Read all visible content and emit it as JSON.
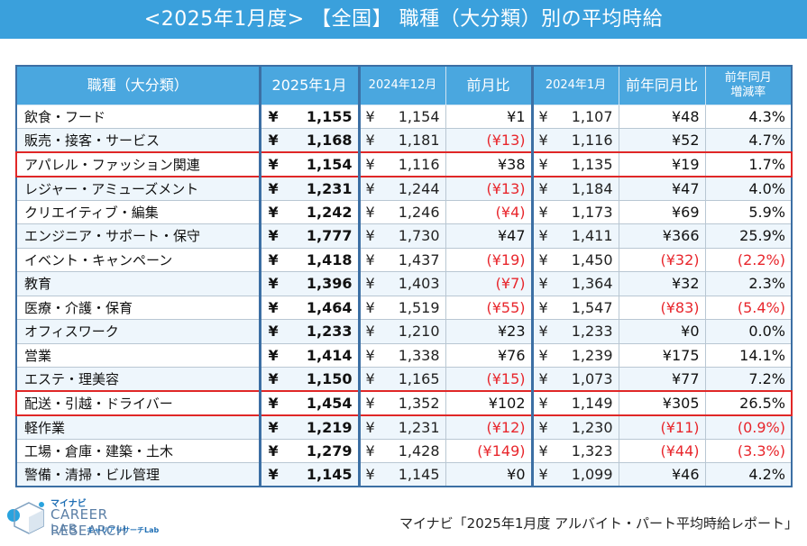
{
  "title": "<2025年1月度> 【全国】 職種（大分類）別の平均時給",
  "headers": {
    "category": "職種（大分類）",
    "current": "2025年1月",
    "prev_month": "2024年12月",
    "mom": "前月比",
    "prev_year": "2024年1月",
    "yoy": "前年同月比",
    "yoy_rate": "前年同月\n増減率"
  },
  "rows": [
    {
      "name": "飲食・フード",
      "current": "1,155",
      "prev_month": "1,154",
      "mom": "¥1",
      "prev_year": "1,107",
      "yoy": "¥48",
      "yoy_rate": "4.3%",
      "mom_neg": false,
      "yoy_neg": false,
      "rate_neg": false,
      "highlight": false
    },
    {
      "name": "販売・接客・サービス",
      "current": "1,168",
      "prev_month": "1,181",
      "mom": "(¥13)",
      "prev_year": "1,116",
      "yoy": "¥52",
      "yoy_rate": "4.7%",
      "mom_neg": true,
      "yoy_neg": false,
      "rate_neg": false,
      "highlight": false
    },
    {
      "name": "アパレル・ファッション関連",
      "current": "1,154",
      "prev_month": "1,116",
      "mom": "¥38",
      "prev_year": "1,135",
      "yoy": "¥19",
      "yoy_rate": "1.7%",
      "mom_neg": false,
      "yoy_neg": false,
      "rate_neg": false,
      "highlight": true
    },
    {
      "name": "レジャー・アミューズメント",
      "current": "1,231",
      "prev_month": "1,244",
      "mom": "(¥13)",
      "prev_year": "1,184",
      "yoy": "¥47",
      "yoy_rate": "4.0%",
      "mom_neg": true,
      "yoy_neg": false,
      "rate_neg": false,
      "highlight": false
    },
    {
      "name": "クリエイティブ・編集",
      "current": "1,242",
      "prev_month": "1,246",
      "mom": "(¥4)",
      "prev_year": "1,173",
      "yoy": "¥69",
      "yoy_rate": "5.9%",
      "mom_neg": true,
      "yoy_neg": false,
      "rate_neg": false,
      "highlight": false
    },
    {
      "name": "エンジニア・サポート・保守",
      "current": "1,777",
      "prev_month": "1,730",
      "mom": "¥47",
      "prev_year": "1,411",
      "yoy": "¥366",
      "yoy_rate": "25.9%",
      "mom_neg": false,
      "yoy_neg": false,
      "rate_neg": false,
      "highlight": false
    },
    {
      "name": "イベント・キャンペーン",
      "current": "1,418",
      "prev_month": "1,437",
      "mom": "(¥19)",
      "prev_year": "1,450",
      "yoy": "(¥32)",
      "yoy_rate": "(2.2%)",
      "mom_neg": true,
      "yoy_neg": true,
      "rate_neg": true,
      "highlight": false
    },
    {
      "name": "教育",
      "current": "1,396",
      "prev_month": "1,403",
      "mom": "(¥7)",
      "prev_year": "1,364",
      "yoy": "¥32",
      "yoy_rate": "2.3%",
      "mom_neg": true,
      "yoy_neg": false,
      "rate_neg": false,
      "highlight": false
    },
    {
      "name": "医療・介護・保育",
      "current": "1,464",
      "prev_month": "1,519",
      "mom": "(¥55)",
      "prev_year": "1,547",
      "yoy": "(¥83)",
      "yoy_rate": "(5.4%)",
      "mom_neg": true,
      "yoy_neg": true,
      "rate_neg": true,
      "highlight": false
    },
    {
      "name": "オフィスワーク",
      "current": "1,233",
      "prev_month": "1,210",
      "mom": "¥23",
      "prev_year": "1,233",
      "yoy": "¥0",
      "yoy_rate": "0.0%",
      "mom_neg": false,
      "yoy_neg": false,
      "rate_neg": false,
      "highlight": false
    },
    {
      "name": "営業",
      "current": "1,414",
      "prev_month": "1,338",
      "mom": "¥76",
      "prev_year": "1,239",
      "yoy": "¥175",
      "yoy_rate": "14.1%",
      "mom_neg": false,
      "yoy_neg": false,
      "rate_neg": false,
      "highlight": false
    },
    {
      "name": "エステ・理美容",
      "current": "1,150",
      "prev_month": "1,165",
      "mom": "(¥15)",
      "prev_year": "1,073",
      "yoy": "¥77",
      "yoy_rate": "7.2%",
      "mom_neg": true,
      "yoy_neg": false,
      "rate_neg": false,
      "highlight": false
    },
    {
      "name": "配送・引越・ドライバー",
      "current": "1,454",
      "prev_month": "1,352",
      "mom": "¥102",
      "prev_year": "1,149",
      "yoy": "¥305",
      "yoy_rate": "26.5%",
      "mom_neg": false,
      "yoy_neg": false,
      "rate_neg": false,
      "highlight": true
    },
    {
      "name": "軽作業",
      "current": "1,219",
      "prev_month": "1,231",
      "mom": "(¥12)",
      "prev_year": "1,230",
      "yoy": "(¥11)",
      "yoy_rate": "(0.9%)",
      "mom_neg": true,
      "yoy_neg": true,
      "rate_neg": true,
      "highlight": false
    },
    {
      "name": "工場・倉庫・建築・土木",
      "current": "1,279",
      "prev_month": "1,428",
      "mom": "(¥149)",
      "prev_year": "1,323",
      "yoy": "(¥44)",
      "yoy_rate": "(3.3%)",
      "mom_neg": true,
      "yoy_neg": true,
      "rate_neg": true,
      "highlight": false
    },
    {
      "name": "警備・清掃・ビル管理",
      "current": "1,145",
      "prev_month": "1,145",
      "mom": "¥0",
      "prev_year": "1,099",
      "yoy": "¥46",
      "yoy_rate": "4.2%",
      "mom_neg": false,
      "yoy_neg": false,
      "rate_neg": false,
      "highlight": false
    }
  ],
  "yen_symbol": "¥",
  "logo": {
    "mynavi": "マイナビ",
    "line1": "CAREER RESEARCH",
    "line2": "LAB",
    "sub": "キャリアリサーチLab"
  },
  "source": "マイナビ「2025年1月度 アルバイト・パート平均時給レポート」",
  "colors": {
    "banner": "#3aa0dc",
    "header": "#4aa7df",
    "negative": "#e8262c",
    "highlight_border": "#e02727"
  }
}
